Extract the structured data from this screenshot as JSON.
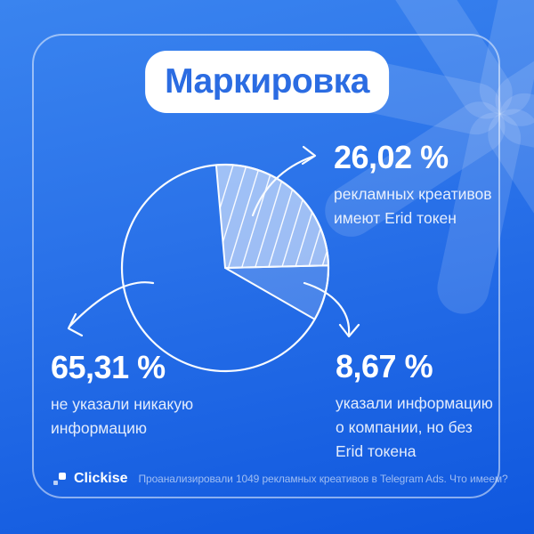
{
  "title": "Маркировка",
  "chart_data": {
    "type": "pie",
    "title": "Маркировка",
    "start_angle_deg": -5,
    "slices": [
      {
        "id": "erid",
        "label": "рекламных креативов имеют Erid токен",
        "value": 26.02,
        "display": "26,02 %",
        "style": "hatched-light"
      },
      {
        "id": "partial",
        "label": "указали информацию о компании, но без Erid токена",
        "value": 8.67,
        "display": "8,67 %",
        "style": "light-tint"
      },
      {
        "id": "none",
        "label": "не указали никакую информацию",
        "value": 65.31,
        "display": "65,31 %",
        "style": "background"
      }
    ],
    "legend_position": "callouts-around-pie",
    "source_note": "Проанализировали 1049 рекламных креативов в Telegram Ads. Что имеем?"
  },
  "callouts": {
    "erid": {
      "percent": "26,02 %",
      "label": "рекламных креативов\nимеют Erid токен"
    },
    "none": {
      "percent": "65,31 %",
      "label": "не указали никакую\nинформацию"
    },
    "partial": {
      "percent": "8,67 %",
      "label": "указали информацию\nо компании, но без\nErid токена"
    }
  },
  "footer": {
    "brand": "Clickise",
    "note": "Проанализировали 1049 рекламных креативов в Telegram Ads. Что имеем?"
  },
  "colors": {
    "bg_top": "#3a84ef",
    "bg_bottom": "#0f57de",
    "title_text": "#2b6ce2",
    "pill_bg": "#ffffff",
    "stroke": "#f8fbff",
    "slice_hatched_fill": "rgba(255,255,255,0.55)",
    "slice_tint_fill": "rgba(255,255,255,0.18)"
  }
}
